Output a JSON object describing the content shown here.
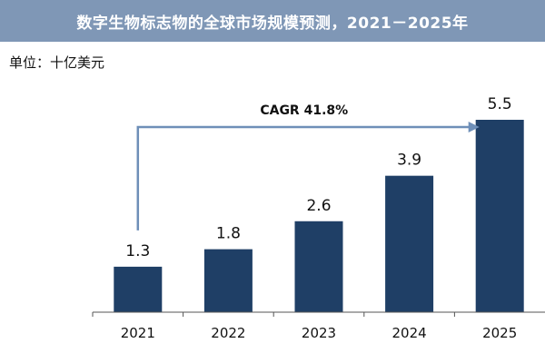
{
  "title": "数字生物标志物的全球市场规模预测，2021－2025年",
  "unit_label": "单位：十亿美元",
  "cagr_label": "CAGR 41.8%",
  "colors": {
    "title_bg": "#7f97b6",
    "bar": "#1f3f66",
    "arrow": "#6e8fb8"
  },
  "chart_data": {
    "type": "bar",
    "title": "数字生物标志物的全球市场规模预测，2021－2025年",
    "ylabel": "单位：十亿美元",
    "categories": [
      "2021",
      "2022",
      "2023",
      "2024",
      "2025"
    ],
    "values": [
      1.3,
      1.8,
      2.6,
      3.9,
      5.5
    ],
    "data_labels": [
      "1.3",
      "1.8",
      "2.6",
      "3.9",
      "5.5"
    ],
    "ylim": [
      0,
      5.5
    ],
    "grid": false,
    "annotation": "CAGR 41.8%"
  }
}
